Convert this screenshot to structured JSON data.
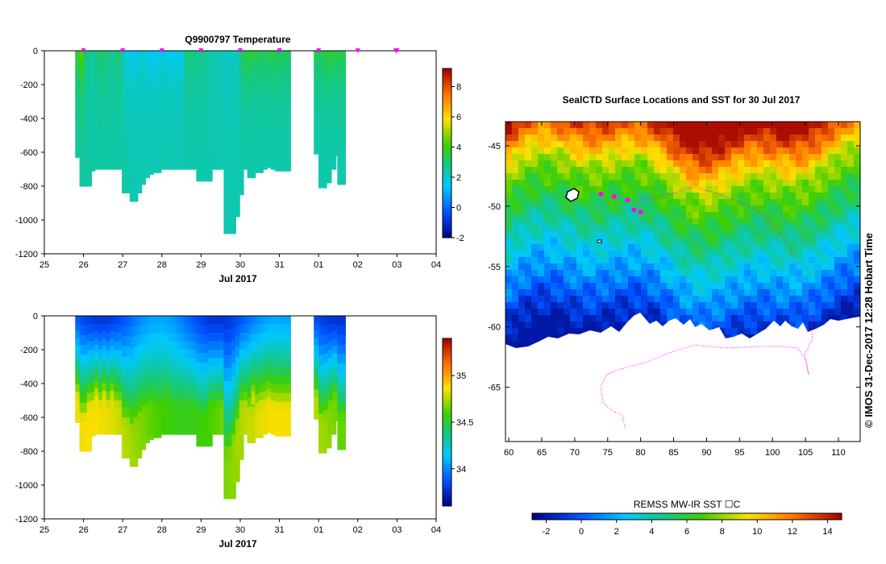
{
  "chart_data": [
    {
      "type": "heatmap",
      "title": "Q9900797  Temperature",
      "xlabel": "Jul 2017",
      "x_tick_labels": [
        "25",
        "26",
        "27",
        "28",
        "29",
        "30",
        "31",
        "01",
        "02",
        "03",
        "04"
      ],
      "y_tick_labels": [
        "0",
        "-200",
        "-400",
        "-600",
        "-800",
        "-1000",
        "-1200"
      ],
      "ylim": [
        -1200,
        0
      ],
      "colorbar": {
        "ticks": [
          "8",
          "6",
          "4",
          "2",
          "0",
          "-2"
        ],
        "range": [
          -2,
          9.2
        ]
      },
      "profiles": [
        {
          "x": 0.89,
          "depth": 630,
          "top": 3.8,
          "bottom": 2.5
        },
        {
          "x": 1.0,
          "depth": 800,
          "top": 4.5,
          "bottom": 2.4
        },
        {
          "x": 1.1,
          "depth": 800,
          "top": 3.2,
          "bottom": 2.4
        },
        {
          "x": 1.19,
          "depth": 710,
          "top": 2.7,
          "bottom": 2.4
        },
        {
          "x": 1.29,
          "depth": 700,
          "top": 2.4,
          "bottom": 2.4
        },
        {
          "x": 1.38,
          "depth": 600,
          "top": 2.9,
          "bottom": 2.3
        },
        {
          "x": 1.48,
          "depth": 700,
          "top": 3.2,
          "bottom": 2.4
        },
        {
          "x": 1.58,
          "depth": 620,
          "top": 3.1,
          "bottom": 2.4
        },
        {
          "x": 1.68,
          "depth": 700,
          "top": 2.9,
          "bottom": 2.4
        },
        {
          "x": 1.78,
          "depth": 620,
          "top": 2.5,
          "bottom": 2.4
        },
        {
          "x": 1.88,
          "depth": 700,
          "top": 3.0,
          "bottom": 2.4
        },
        {
          "x": 1.98,
          "depth": 700,
          "top": 3.0,
          "bottom": 2.4
        },
        {
          "x": 2.08,
          "depth": 840,
          "top": 2.0,
          "bottom": 2.4
        },
        {
          "x": 2.18,
          "depth": 840,
          "top": 1.7,
          "bottom": 2.4
        },
        {
          "x": 2.28,
          "depth": 890,
          "top": 1.6,
          "bottom": 2.3
        },
        {
          "x": 2.38,
          "depth": 840,
          "top": 1.5,
          "bottom": 2.3
        },
        {
          "x": 2.48,
          "depth": 790,
          "top": 1.7,
          "bottom": 2.3
        },
        {
          "x": 2.58,
          "depth": 750,
          "top": 1.8,
          "bottom": 2.3
        },
        {
          "x": 2.68,
          "depth": 730,
          "top": 1.6,
          "bottom": 2.3
        },
        {
          "x": 2.78,
          "depth": 700,
          "top": 1.3,
          "bottom": 2.3
        },
        {
          "x": 2.88,
          "depth": 720,
          "top": 1.4,
          "bottom": 2.3
        },
        {
          "x": 2.98,
          "depth": 700,
          "top": 1.5,
          "bottom": 2.3
        },
        {
          "x": 3.08,
          "depth": 700,
          "top": 1.7,
          "bottom": 2.3
        },
        {
          "x": 3.18,
          "depth": 530,
          "top": 1.5,
          "bottom": 2.3
        },
        {
          "x": 3.28,
          "depth": 700,
          "top": 1.4,
          "bottom": 2.3
        },
        {
          "x": 3.38,
          "depth": 700,
          "top": 1.5,
          "bottom": 2.3
        },
        {
          "x": 3.48,
          "depth": 700,
          "top": 1.5,
          "bottom": 2.3
        },
        {
          "x": 3.58,
          "depth": 700,
          "top": 1.6,
          "bottom": 2.3
        },
        {
          "x": 3.68,
          "depth": 700,
          "top": 3.0,
          "bottom": 2.3
        },
        {
          "x": 3.78,
          "depth": 700,
          "top": 3.0,
          "bottom": 2.3
        },
        {
          "x": 3.88,
          "depth": 700,
          "top": 2.9,
          "bottom": 2.3
        },
        {
          "x": 3.98,
          "depth": 770,
          "top": 2.8,
          "bottom": 2.3
        },
        {
          "x": 4.08,
          "depth": 770,
          "top": 2.8,
          "bottom": 2.3
        },
        {
          "x": 4.18,
          "depth": 770,
          "top": 2.7,
          "bottom": 2.3
        },
        {
          "x": 4.28,
          "depth": 700,
          "top": 2.5,
          "bottom": 2.3
        },
        {
          "x": 4.38,
          "depth": 700,
          "top": 2.3,
          "bottom": 2.3
        },
        {
          "x": 4.48,
          "depth": 700,
          "top": 2.2,
          "bottom": 2.3
        },
        {
          "x": 4.58,
          "depth": 700,
          "top": 2.2,
          "bottom": 2.3
        },
        {
          "x": 4.68,
          "depth": 1080,
          "top": 2.0,
          "bottom": 2.3
        },
        {
          "x": 4.78,
          "depth": 1080,
          "top": 2.0,
          "bottom": 2.3
        },
        {
          "x": 4.88,
          "depth": 980,
          "top": 2.0,
          "bottom": 2.3
        },
        {
          "x": 4.98,
          "depth": 850,
          "top": 2.1,
          "bottom": 2.3
        },
        {
          "x": 5.08,
          "depth": 700,
          "top": 3.2,
          "bottom": 2.3
        },
        {
          "x": 5.18,
          "depth": 700,
          "top": 3.5,
          "bottom": 2.3
        },
        {
          "x": 5.28,
          "depth": 750,
          "top": 3.8,
          "bottom": 2.3
        },
        {
          "x": 5.38,
          "depth": 520,
          "top": 3.7,
          "bottom": 2.3
        },
        {
          "x": 5.48,
          "depth": 720,
          "top": 3.4,
          "bottom": 2.3
        },
        {
          "x": 5.58,
          "depth": 700,
          "top": 3.4,
          "bottom": 2.3
        },
        {
          "x": 5.68,
          "depth": 690,
          "top": 3.3,
          "bottom": 2.3
        },
        {
          "x": 5.78,
          "depth": 670,
          "top": 3.5,
          "bottom": 2.3
        },
        {
          "x": 5.88,
          "depth": 700,
          "top": 3.6,
          "bottom": 2.3
        },
        {
          "x": 5.98,
          "depth": 710,
          "top": 3.5,
          "bottom": 2.3
        },
        {
          "x": 6.08,
          "depth": 710,
          "top": 3.4,
          "bottom": 2.3
        },
        {
          "x": 6.18,
          "depth": 710,
          "top": 3.3,
          "bottom": 2.3
        },
        {
          "x": 6.98,
          "depth": 610,
          "top": 3.5,
          "bottom": 2.3
        },
        {
          "x": 7.1,
          "depth": 810,
          "top": 3.3,
          "bottom": 2.3
        },
        {
          "x": 7.22,
          "depth": 780,
          "top": 3.6,
          "bottom": 2.3
        },
        {
          "x": 7.34,
          "depth": 700,
          "top": 3.8,
          "bottom": 2.3
        },
        {
          "x": 7.46,
          "depth": 620,
          "top": 3.6,
          "bottom": 2.3
        },
        {
          "x": 7.58,
          "depth": 790,
          "top": 3.5,
          "bottom": 2.3
        }
      ],
      "markers_x": [
        1.0,
        2.0,
        3.0,
        4.0,
        5.0,
        6.0,
        7.0,
        8.0,
        8.97,
        9.0
      ]
    },
    {
      "type": "heatmap",
      "title": "",
      "xlabel": "Jul 2017",
      "x_tick_labels": [
        "25",
        "26",
        "27",
        "28",
        "29",
        "30",
        "31",
        "01",
        "02",
        "03",
        "04"
      ],
      "y_tick_labels": [
        "0",
        "-200",
        "-400",
        "-600",
        "-800",
        "-1000",
        "-1200"
      ],
      "ylim": [
        -1200,
        0
      ],
      "colorbar": {
        "ticks": [
          "35",
          "34.5",
          "34"
        ],
        "range": [
          33.6,
          35.4
        ]
      },
      "transition_depth_by_profile": "derived from top panel depths"
    },
    {
      "type": "heatmap",
      "title": "SealCTD Surface Locations and SST for 30 Jul 2017",
      "x_tick_labels": [
        "60",
        "65",
        "70",
        "75",
        "80",
        "85",
        "90",
        "95",
        "100",
        "105",
        "110"
      ],
      "y_tick_labels": [
        "-45",
        "-50",
        "-55",
        "-60",
        "-65"
      ],
      "xlim": [
        59.5,
        113.3
      ],
      "ylim": [
        -69.5,
        -43
      ],
      "colorbar": {
        "label": "REMSS MW-IR SST ☐C",
        "ticks": [
          "-2",
          "0",
          "2",
          "4",
          "6",
          "8",
          "10",
          "12",
          "14"
        ],
        "range": [
          -2.8,
          14.8
        ]
      },
      "surface_locations": [
        {
          "lon": 74,
          "lat": -49.0
        },
        {
          "lon": 76,
          "lat": -49.2
        },
        {
          "lon": 78,
          "lat": -49.5
        },
        {
          "lon": 79,
          "lat": -50.3
        },
        {
          "lon": 80,
          "lat": -50.5
        }
      ],
      "credit": "©  IMOS 31-Dec-2017 12:28 Hobart Time"
    }
  ]
}
